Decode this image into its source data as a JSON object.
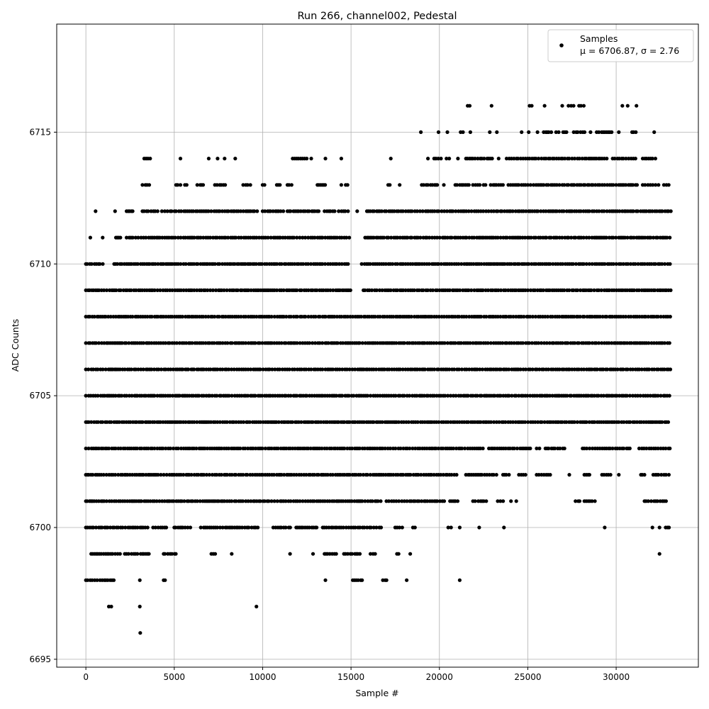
{
  "chart_data": {
    "type": "scatter",
    "title": "Run 266, channel002, Pedestal",
    "xlabel": "Sample #",
    "ylabel": "ADC Counts",
    "xlim": [
      -1650,
      34650
    ],
    "ylim": [
      6694.7,
      6719.1
    ],
    "x_ticks": [
      0,
      5000,
      10000,
      15000,
      20000,
      25000,
      30000
    ],
    "y_ticks": [
      6695,
      6700,
      6705,
      6710,
      6715
    ],
    "grid": true,
    "legend": {
      "placement": "top-right",
      "entries": [
        {
          "name": "Samples",
          "stat_text": "μ = 6706.87, σ = 2.76",
          "marker": "dot"
        }
      ]
    },
    "marker_color": "#000000",
    "x_range": [
      0,
      33100
    ],
    "level_coverage": [
      {
        "y": 6696,
        "segments": [
          [
            3050,
            3100
          ]
        ]
      },
      {
        "y": 6697,
        "segments": [
          [
            1300,
            1500
          ],
          [
            3000,
            3100
          ],
          [
            9600,
            9700
          ]
        ]
      },
      {
        "y": 6698,
        "segments": [
          [
            0,
            700
          ],
          [
            800,
            1600
          ],
          [
            3000,
            3100
          ],
          [
            4400,
            4600
          ],
          [
            13500,
            13600
          ],
          [
            15100,
            15700
          ],
          [
            16800,
            17100
          ],
          [
            18100,
            18200
          ],
          [
            21100,
            21200
          ]
        ]
      },
      {
        "y": 6699,
        "segments": [
          [
            300,
            2000
          ],
          [
            2200,
            3000
          ],
          [
            3100,
            3700
          ],
          [
            4400,
            5100
          ],
          [
            7100,
            7400
          ],
          [
            8200,
            8300
          ],
          [
            11500,
            11600
          ],
          [
            12800,
            12900
          ],
          [
            13500,
            14200
          ],
          [
            14600,
            15500
          ],
          [
            16100,
            16400
          ],
          [
            17600,
            17800
          ],
          [
            18300,
            18400
          ],
          [
            32400,
            32500
          ]
        ]
      },
      {
        "y": 6700,
        "segments": [
          [
            0,
            3500
          ],
          [
            3800,
            4700
          ],
          [
            5000,
            6000
          ],
          [
            6500,
            9800
          ],
          [
            10600,
            11600
          ],
          [
            11900,
            13200
          ],
          [
            13400,
            16800
          ],
          [
            17500,
            18000
          ],
          [
            18500,
            18700
          ],
          [
            20500,
            20700
          ],
          [
            21100,
            21200
          ],
          [
            22200,
            22300
          ],
          [
            23600,
            23700
          ],
          [
            29300,
            29400
          ],
          [
            32000,
            32100
          ],
          [
            32400,
            32500
          ],
          [
            32800,
            33000
          ]
        ]
      },
      {
        "y": 6701,
        "segments": [
          [
            0,
            16800
          ],
          [
            17000,
            20300
          ],
          [
            20600,
            21100
          ],
          [
            21900,
            22100
          ],
          [
            22200,
            22700
          ],
          [
            23300,
            23700
          ],
          [
            24000,
            24100
          ],
          [
            24300,
            24400
          ],
          [
            27700,
            28000
          ],
          [
            28200,
            28800
          ],
          [
            31600,
            32900
          ]
        ]
      },
      {
        "y": 6702,
        "segments": [
          [
            0,
            21100
          ],
          [
            21500,
            23300
          ],
          [
            23600,
            24100
          ],
          [
            24500,
            25000
          ],
          [
            25500,
            26300
          ],
          [
            27300,
            27400
          ],
          [
            28200,
            28600
          ],
          [
            29200,
            29700
          ],
          [
            30100,
            30200
          ],
          [
            31400,
            31700
          ],
          [
            32100,
            33100
          ]
        ]
      },
      {
        "y": 6703,
        "segments": [
          [
            0,
            22600
          ],
          [
            22800,
            25200
          ],
          [
            25500,
            25700
          ],
          [
            26000,
            27100
          ],
          [
            28100,
            30900
          ],
          [
            31300,
            33100
          ]
        ]
      },
      {
        "y": 6704,
        "segments": [
          [
            0,
            33100
          ]
        ]
      },
      {
        "y": 6705,
        "segments": [
          [
            0,
            33100
          ]
        ]
      },
      {
        "y": 6706,
        "segments": [
          [
            0,
            33100
          ]
        ]
      },
      {
        "y": 6707,
        "segments": [
          [
            0,
            33100
          ]
        ]
      },
      {
        "y": 6708,
        "segments": [
          [
            0,
            33100
          ]
        ]
      },
      {
        "y": 6709,
        "segments": [
          [
            0,
            15000
          ],
          [
            15700,
            33100
          ]
        ]
      },
      {
        "y": 6710,
        "segments": [
          [
            0,
            1000
          ],
          [
            1600,
            14900
          ],
          [
            15600,
            33100
          ]
        ]
      },
      {
        "y": 6711,
        "segments": [
          [
            200,
            300
          ],
          [
            900,
            1000
          ],
          [
            1700,
            2000
          ],
          [
            2300,
            14900
          ],
          [
            15800,
            33100
          ]
        ]
      },
      {
        "y": 6712,
        "segments": [
          [
            500,
            600
          ],
          [
            1600,
            1700
          ],
          [
            2300,
            2700
          ],
          [
            3200,
            4100
          ],
          [
            4300,
            9800
          ],
          [
            10000,
            11200
          ],
          [
            11400,
            13200
          ],
          [
            13500,
            14200
          ],
          [
            14300,
            14900
          ],
          [
            15300,
            15400
          ],
          [
            15900,
            33100
          ]
        ]
      },
      {
        "y": 6713,
        "segments": [
          [
            3200,
            3600
          ],
          [
            5100,
            5400
          ],
          [
            5600,
            5800
          ],
          [
            6300,
            6700
          ],
          [
            7300,
            7900
          ],
          [
            8900,
            9400
          ],
          [
            10000,
            10200
          ],
          [
            10800,
            11000
          ],
          [
            11400,
            11700
          ],
          [
            13100,
            13600
          ],
          [
            14400,
            14500
          ],
          [
            14700,
            14900
          ],
          [
            17100,
            17300
          ],
          [
            17700,
            17800
          ],
          [
            19000,
            20000
          ],
          [
            20200,
            20300
          ],
          [
            20900,
            21700
          ],
          [
            21900,
            22300
          ],
          [
            22500,
            22700
          ],
          [
            22900,
            23700
          ],
          [
            23900,
            31300
          ],
          [
            31500,
            32500
          ],
          [
            32700,
            33100
          ]
        ]
      },
      {
        "y": 6714,
        "segments": [
          [
            3300,
            3700
          ],
          [
            5300,
            5400
          ],
          [
            6900,
            7000
          ],
          [
            7400,
            7500
          ],
          [
            7800,
            7900
          ],
          [
            8400,
            8500
          ],
          [
            11700,
            12500
          ],
          [
            12700,
            12800
          ],
          [
            13500,
            13600
          ],
          [
            14400,
            14500
          ],
          [
            17200,
            17300
          ],
          [
            19300,
            19400
          ],
          [
            19700,
            20100
          ],
          [
            20400,
            20600
          ],
          [
            21000,
            21100
          ],
          [
            21500,
            22600
          ],
          [
            22700,
            23000
          ],
          [
            23300,
            23400
          ],
          [
            23800,
            29500
          ],
          [
            29800,
            31200
          ],
          [
            31500,
            32300
          ]
        ]
      },
      {
        "y": 6715,
        "segments": [
          [
            18900,
            19000
          ],
          [
            19900,
            20000
          ],
          [
            20400,
            20500
          ],
          [
            21200,
            21400
          ],
          [
            21700,
            21800
          ],
          [
            22800,
            22900
          ],
          [
            23200,
            23300
          ],
          [
            24600,
            24700
          ],
          [
            25000,
            25100
          ],
          [
            25500,
            25600
          ],
          [
            25900,
            26400
          ],
          [
            26600,
            26800
          ],
          [
            27000,
            27300
          ],
          [
            27600,
            28300
          ],
          [
            28500,
            28600
          ],
          [
            28900,
            29800
          ],
          [
            30100,
            30200
          ],
          [
            30900,
            31200
          ],
          [
            32100,
            32200
          ]
        ]
      },
      {
        "y": 6716,
        "segments": [
          [
            21600,
            21800
          ],
          [
            22900,
            23000
          ],
          [
            25100,
            25300
          ],
          [
            25900,
            26000
          ],
          [
            26900,
            27000
          ],
          [
            27300,
            27600
          ],
          [
            27900,
            28300
          ],
          [
            30300,
            30400
          ],
          [
            30600,
            30700
          ],
          [
            31100,
            31200
          ]
        ]
      }
    ]
  }
}
